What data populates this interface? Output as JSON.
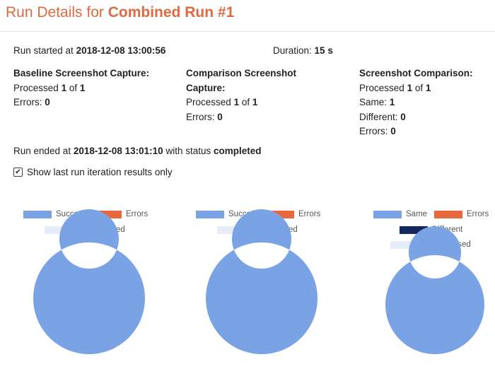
{
  "header": {
    "title_prefix": "Run Details for",
    "run_name": "Combined Run #1"
  },
  "summary": {
    "started_label": "Run started at",
    "started_value": "2018-12-08 13:00:56",
    "duration_label": "Duration:",
    "duration_value": "15 s",
    "ended_label": "Run ended at",
    "ended_value": "2018-12-08 13:01:10",
    "ended_status_label": "with status",
    "ended_status_value": "completed"
  },
  "baseline": {
    "heading": "Baseline Screenshot Capture:",
    "processed_label": "Processed",
    "processed_count": "1",
    "of_label": "of",
    "processed_total": "1",
    "errors_label": "Errors:",
    "errors_value": "0"
  },
  "comparison_capture": {
    "heading_line1": "Comparison Screenshot",
    "heading_line2": "Capture:",
    "processed_label": "Processed",
    "processed_count": "1",
    "of_label": "of",
    "processed_total": "1",
    "errors_label": "Errors:",
    "errors_value": "0"
  },
  "screenshot_comparison": {
    "heading": "Screenshot Comparison:",
    "processed_label": "Processed",
    "processed_count": "1",
    "of_label": "of",
    "processed_total": "1",
    "same_label": "Same:",
    "same_value": "1",
    "different_label": "Different:",
    "different_value": "0",
    "errors_label": "Errors:",
    "errors_value": "0"
  },
  "options": {
    "show_last_label": "Show last run iteration results only",
    "show_last_checked": true,
    "check_glyph": "✔"
  },
  "colors": {
    "accent": "#e06a3f",
    "success": "#7aa3e5",
    "errors": "#e8673c",
    "unprocessed": "#e6edf8",
    "different": "#14285a"
  },
  "chart_data": [
    {
      "type": "pie",
      "categories": [
        "Success",
        "Errors",
        "Unprocessed"
      ],
      "values": [
        1,
        0,
        0
      ]
    },
    {
      "type": "pie",
      "categories": [
        "Success",
        "Errors",
        "Unprocessed"
      ],
      "values": [
        1,
        0,
        0
      ]
    },
    {
      "type": "pie",
      "categories": [
        "Same",
        "Errors",
        "Different",
        "Unprocessed"
      ],
      "values": [
        1,
        0,
        0,
        0
      ]
    }
  ]
}
